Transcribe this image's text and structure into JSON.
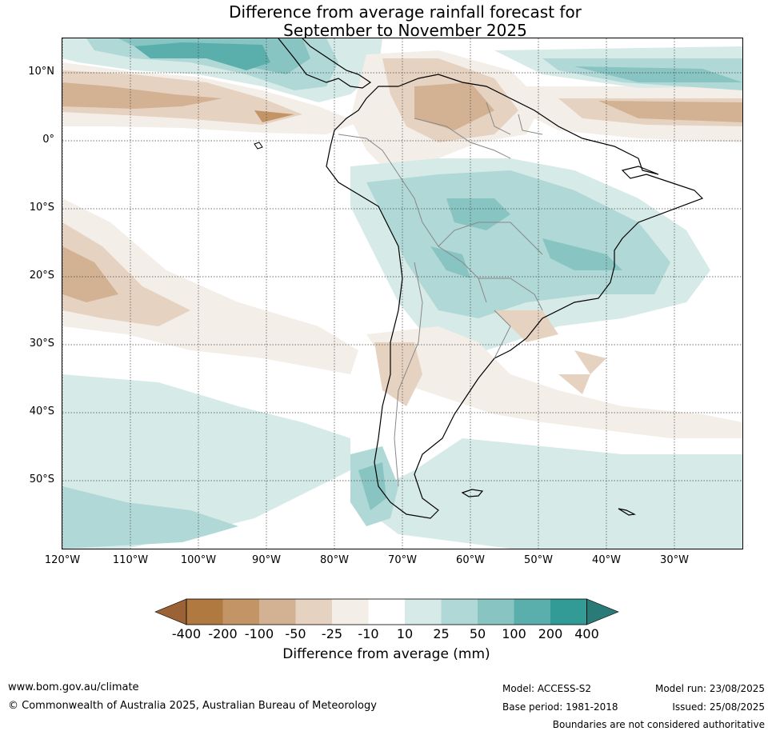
{
  "title": {
    "line1": "Difference from average rainfall forecast for",
    "line2": "September to November 2025"
  },
  "map": {
    "region": "South America",
    "lat_labels": [
      "10°N",
      "0°",
      "10°S",
      "20°S",
      "30°S",
      "40°S",
      "50°S"
    ],
    "lon_labels": [
      "120°W",
      "110°W",
      "100°W",
      "90°W",
      "80°W",
      "70°W",
      "60°W",
      "50°W",
      "40°W",
      "30°W"
    ]
  },
  "colorbar": {
    "ticks": [
      "-400",
      "-200",
      "-100",
      "-50",
      "-25",
      "-10",
      "10",
      "25",
      "50",
      "100",
      "200",
      "400"
    ],
    "colors": {
      "lt400": "#9b6235",
      "m400_200": "#b07940",
      "m200_100": "#c39466",
      "m100_50": "#d3b293",
      "m50_25": "#e6d2c1",
      "m25_10": "#f4eee9",
      "m10_10": "#ffffff",
      "p10_25": "#d6eae8",
      "p25_50": "#afd8d6",
      "p50_100": "#87c4c2",
      "p100_200": "#5aafac",
      "p200_400": "#339b96",
      "gt400": "#2a7a77"
    },
    "label": "Difference from average (mm)"
  },
  "footer": {
    "website": "www.bom.gov.au/climate",
    "copyright": "© Commonwealth of Australia 2025, Australian Bureau of Meteorology",
    "model": "Model: ACCESS-S2",
    "base_period": "Base period: 1981-2018",
    "model_run": "Model run: 23/08/2025",
    "issued": "Issued: 25/08/2025",
    "boundaries": "Boundaries are not considered authoritative"
  }
}
